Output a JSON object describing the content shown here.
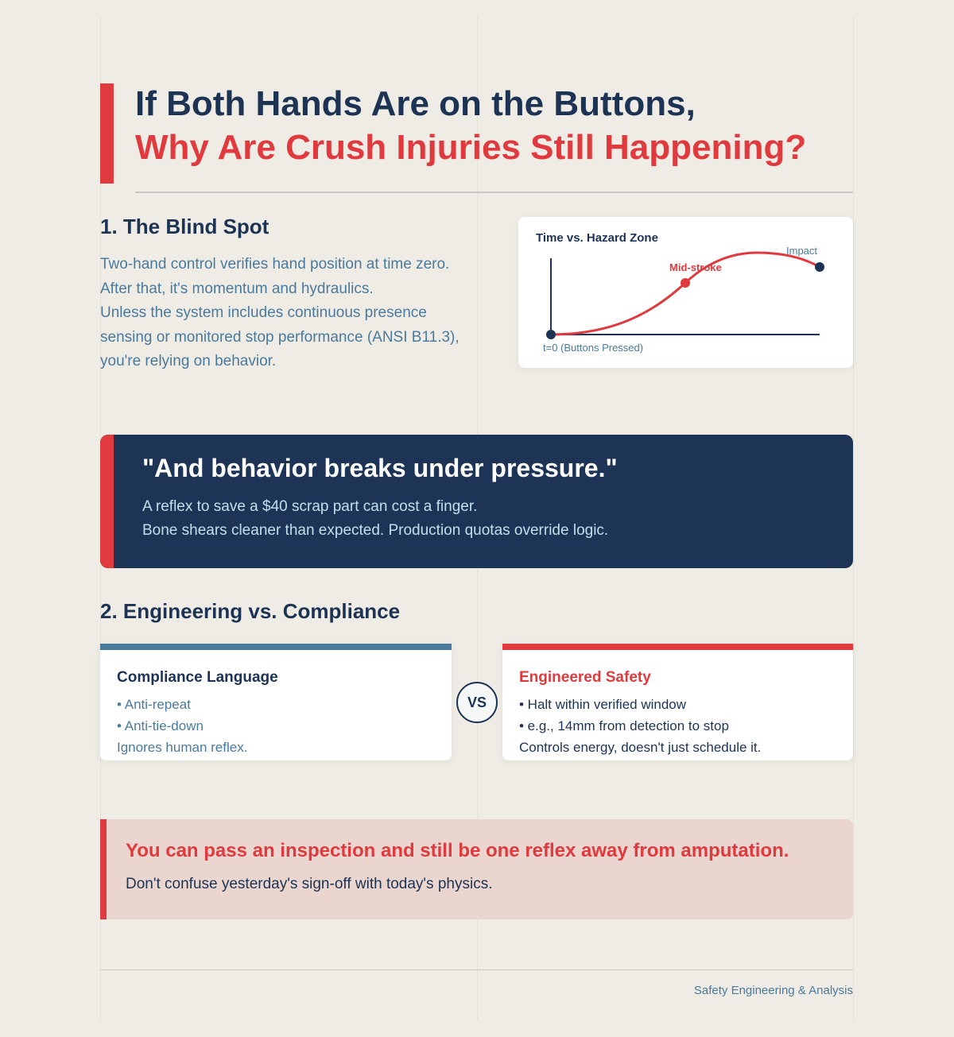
{
  "header": {
    "title_line1": "If Both Hands Are on the Buttons,",
    "title_line2": "Why Are Crush Injuries Still Happening?"
  },
  "section1": {
    "heading": "1. The Blind Spot",
    "lines": [
      "Two-hand control verifies hand position at time zero.",
      "After that, it's momentum and hydraulics.",
      "Unless the system includes continuous presence",
      "sensing or monitored stop performance (ANSI B11.3),",
      "you're relying on behavior."
    ]
  },
  "diagram": {
    "title": "Time vs. Hazard Zone",
    "start_label": "t=0 (Buttons Pressed)",
    "mid_label": "Mid-stroke",
    "end_label": "Impact"
  },
  "quote": {
    "text": "\"And behavior breaks under pressure.\"",
    "lines": [
      "A reflex to save a $40 scrap part can cost a finger.",
      "Bone shears cleaner than expected. Production quotas override logic."
    ]
  },
  "section2": {
    "heading": "2. Engineering vs. Compliance",
    "left": {
      "title": "Compliance Language",
      "bullets": [
        "• Anti-repeat",
        "• Anti-tie-down"
      ],
      "note": "Ignores human reflex."
    },
    "vs": "VS",
    "right": {
      "title": "Engineered Safety",
      "bullets": [
        "• Halt within verified window",
        "• e.g., 14mm from detection to stop"
      ],
      "note": "Controls energy, doesn't just schedule it."
    }
  },
  "callout": {
    "headline": "You can pass an inspection and still be one reflex away from amputation.",
    "text": "Don't confuse yesterday's sign-off with today's physics."
  },
  "footer": {
    "text": "Safety Engineering & Analysis"
  }
}
